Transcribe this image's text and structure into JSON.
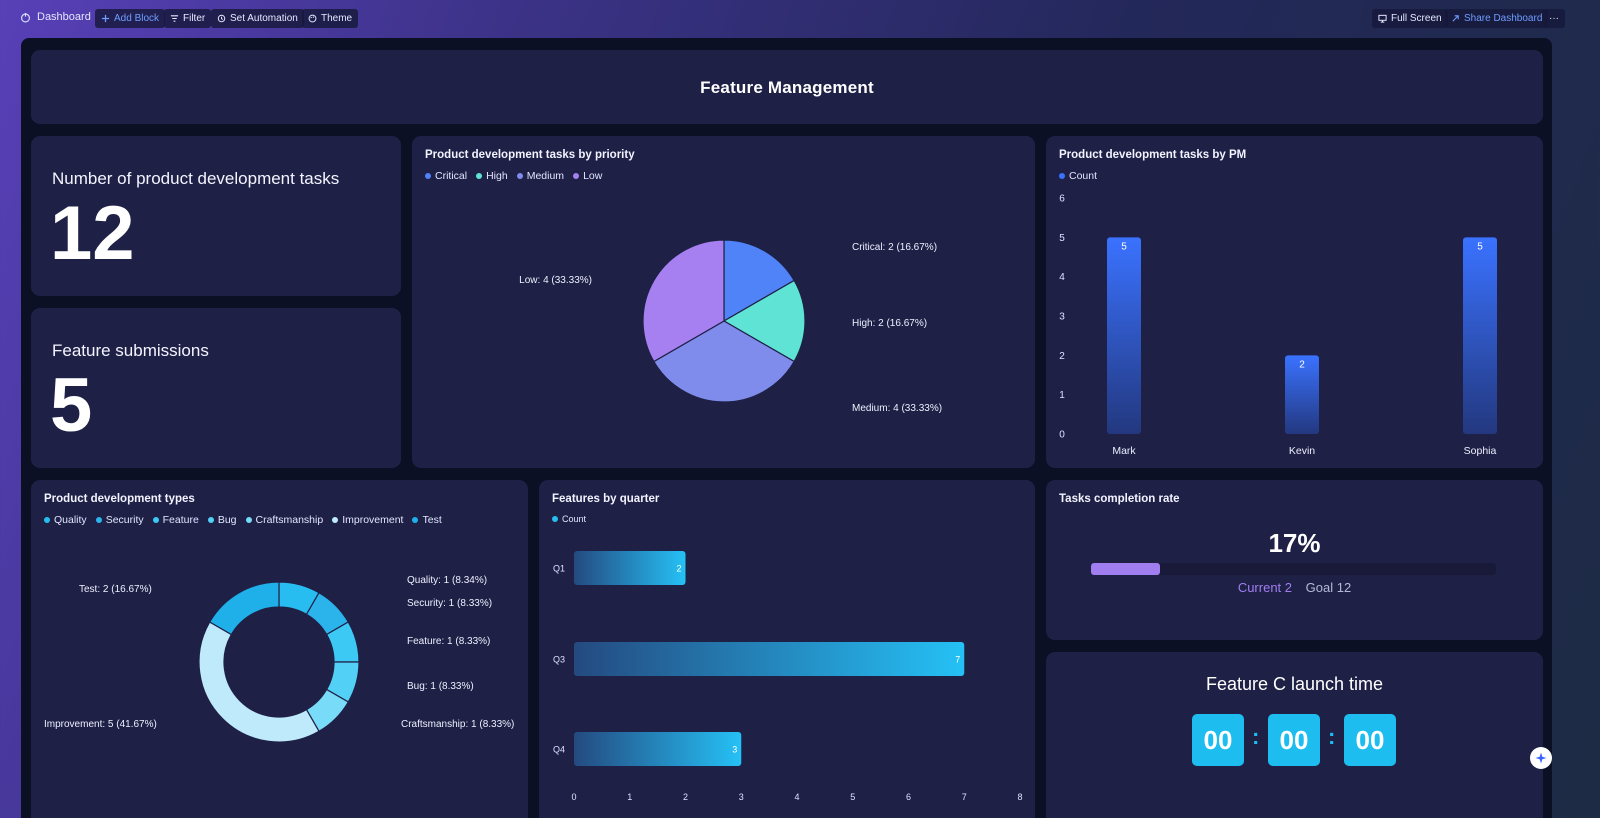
{
  "toolbar": {
    "title": "Dashboard",
    "add_block": "Add Block",
    "filter": "Filter",
    "set_automation": "Set Automation",
    "theme": "Theme",
    "full_screen": "Full Screen",
    "share_dashboard": "Share Dashboard",
    "more": "···"
  },
  "banner": {
    "title": "Feature Management"
  },
  "kpis": [
    {
      "label": "Number of product development tasks",
      "value": "12"
    },
    {
      "label": "Feature submissions",
      "value": "5"
    }
  ],
  "priority_chart": {
    "title": "Product development tasks by priority",
    "chart_data": {
      "type": "pie",
      "labels": [
        "Critical",
        "High",
        "Medium",
        "Low"
      ],
      "values": [
        2,
        2,
        4,
        4
      ],
      "colors": [
        "#4f83f7",
        "#5ee3d4",
        "#7f8cec",
        "#a67ff1"
      ],
      "data_labels": [
        "Critical: 2 (16.67%)",
        "High: 2 (16.67%)",
        "Medium: 4 (33.33%)",
        "Low: 4 (33.33%)"
      ]
    }
  },
  "pm_chart": {
    "title": "Product development tasks by PM",
    "legend": "Count",
    "chart_data": {
      "type": "bar",
      "categories": [
        "Mark",
        "Kevin",
        "Sophia"
      ],
      "values": [
        5,
        2,
        5
      ],
      "ylim": [
        0,
        6
      ],
      "yticks": [
        "6",
        "5",
        "4",
        "3",
        "2",
        "1",
        "0"
      ],
      "color": "#3a72ff"
    }
  },
  "types_chart": {
    "title": "Product development types",
    "chart_data": {
      "type": "pie",
      "donut": true,
      "labels": [
        "Quality",
        "Security",
        "Feature",
        "Bug",
        "Craftsmanship",
        "Improvement",
        "Test"
      ],
      "values": [
        1,
        1,
        1,
        1,
        1,
        5,
        2
      ],
      "colors": [
        "#27bdf0",
        "#2bb4ec",
        "#3cc9f4",
        "#53d0f6",
        "#78dbf8",
        "#bfeafb",
        "#1fb0ea"
      ],
      "data_labels": [
        "Quality: 1 (8.34%)",
        "Security: 1 (8.33%)",
        "Feature: 1 (8.33%)",
        "Bug: 1 (8.33%)",
        "Craftsmanship: 1 (8.33%)",
        "Improvement: 5 (41.67%)",
        "Test: 2 (16.67%)"
      ]
    }
  },
  "quarter_chart": {
    "title": "Features by quarter",
    "legend": "Count",
    "chart_data": {
      "type": "bar",
      "orientation": "horizontal",
      "categories": [
        "Q1",
        "Q3",
        "Q4"
      ],
      "values": [
        2,
        7,
        3
      ],
      "xlim": [
        0,
        8
      ],
      "xticks": [
        "0",
        "1",
        "2",
        "3",
        "4",
        "5",
        "6",
        "7",
        "8"
      ],
      "color": "#27bdf0"
    }
  },
  "completion": {
    "title": "Tasks completion rate",
    "percent_text": "17%",
    "fraction": 0.17,
    "current_label": "Current 2",
    "goal_label": "Goal 12"
  },
  "countdown": {
    "title": "Feature C launch time",
    "units": [
      "00",
      "00",
      "00"
    ],
    "separator": ":"
  }
}
